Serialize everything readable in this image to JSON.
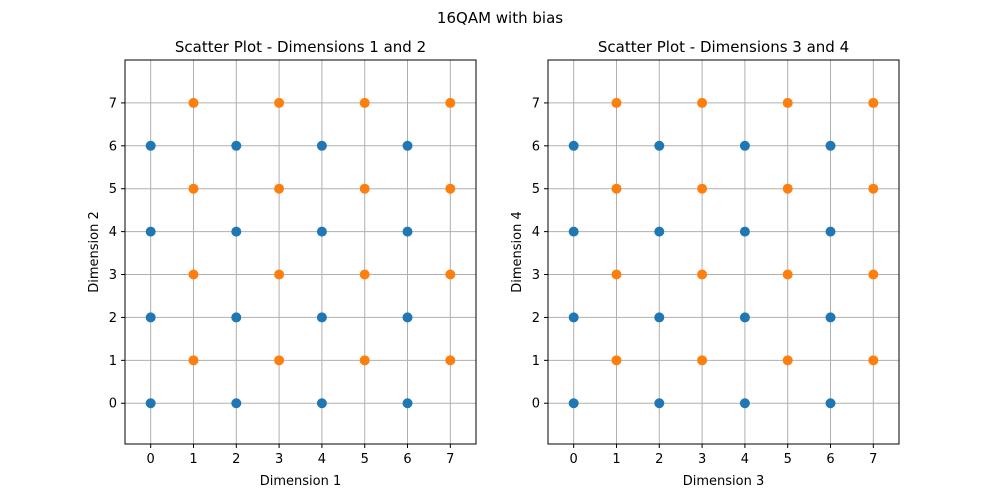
{
  "figure": {
    "suptitle": "16QAM with bias"
  },
  "chart_data": [
    {
      "type": "scatter",
      "title": "Scatter Plot - Dimensions 1 and 2",
      "xlabel": "Dimension 1",
      "ylabel": "Dimension 2",
      "xlim": [
        -0.6,
        7.6
      ],
      "ylim": [
        -0.95,
        8.0
      ],
      "xticks": [
        "0",
        "1",
        "2",
        "3",
        "4",
        "5",
        "6",
        "7"
      ],
      "yticks": [
        "0",
        "1",
        "2",
        "3",
        "4",
        "5",
        "6",
        "7"
      ],
      "grid": true,
      "series": [
        {
          "color": "#1f77b4",
          "points": [
            [
              0,
              0
            ],
            [
              0,
              2
            ],
            [
              0,
              4
            ],
            [
              0,
              6
            ],
            [
              2,
              0
            ],
            [
              2,
              2
            ],
            [
              2,
              4
            ],
            [
              2,
              6
            ],
            [
              4,
              0
            ],
            [
              4,
              2
            ],
            [
              4,
              4
            ],
            [
              4,
              6
            ],
            [
              6,
              0
            ],
            [
              6,
              2
            ],
            [
              6,
              4
            ],
            [
              6,
              6
            ]
          ]
        },
        {
          "color": "#ff7f0e",
          "points": [
            [
              1,
              1
            ],
            [
              1,
              3
            ],
            [
              1,
              5
            ],
            [
              1,
              7
            ],
            [
              3,
              1
            ],
            [
              3,
              3
            ],
            [
              3,
              5
            ],
            [
              3,
              7
            ],
            [
              5,
              1
            ],
            [
              5,
              3
            ],
            [
              5,
              5
            ],
            [
              5,
              7
            ],
            [
              7,
              1
            ],
            [
              7,
              3
            ],
            [
              7,
              5
            ],
            [
              7,
              7
            ]
          ]
        }
      ]
    },
    {
      "type": "scatter",
      "title": "Scatter Plot - Dimensions 3 and 4",
      "xlabel": "Dimension 3",
      "ylabel": "Dimension 4",
      "xlim": [
        -0.6,
        7.6
      ],
      "ylim": [
        -0.95,
        8.0
      ],
      "xticks": [
        "0",
        "1",
        "2",
        "3",
        "4",
        "5",
        "6",
        "7"
      ],
      "yticks": [
        "0",
        "1",
        "2",
        "3",
        "4",
        "5",
        "6",
        "7"
      ],
      "grid": true,
      "series": [
        {
          "color": "#1f77b4",
          "points": [
            [
              0,
              0
            ],
            [
              0,
              2
            ],
            [
              0,
              4
            ],
            [
              0,
              6
            ],
            [
              2,
              0
            ],
            [
              2,
              2
            ],
            [
              2,
              4
            ],
            [
              2,
              6
            ],
            [
              4,
              0
            ],
            [
              4,
              2
            ],
            [
              4,
              4
            ],
            [
              4,
              6
            ],
            [
              6,
              0
            ],
            [
              6,
              2
            ],
            [
              6,
              4
            ],
            [
              6,
              6
            ]
          ]
        },
        {
          "color": "#ff7f0e",
          "points": [
            [
              1,
              1
            ],
            [
              1,
              3
            ],
            [
              1,
              5
            ],
            [
              1,
              7
            ],
            [
              3,
              1
            ],
            [
              3,
              3
            ],
            [
              3,
              5
            ],
            [
              3,
              7
            ],
            [
              5,
              1
            ],
            [
              5,
              3
            ],
            [
              5,
              5
            ],
            [
              5,
              7
            ],
            [
              7,
              1
            ],
            [
              7,
              3
            ],
            [
              7,
              5
            ],
            [
              7,
              7
            ]
          ]
        }
      ]
    }
  ]
}
